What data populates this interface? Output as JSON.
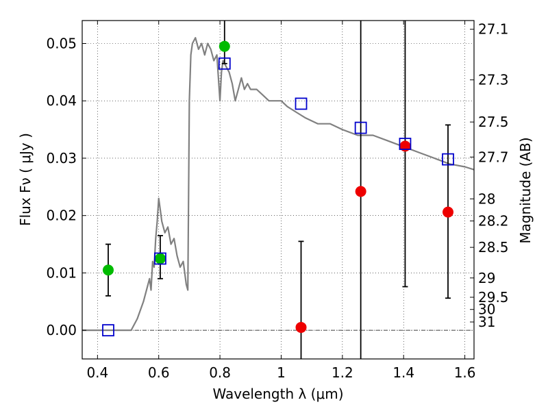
{
  "chart_data": {
    "type": "scatter",
    "xlabel": "Wavelength  λ (μm)",
    "ylabel": "Flux  Fν  ( μJy )",
    "y2label": "Magnitude (AB)",
    "xlim": [
      0.35,
      1.63
    ],
    "ylim": [
      -0.005,
      0.054
    ],
    "grid": true,
    "x_ticks": [
      {
        "value": 0.4,
        "label": "0.4"
      },
      {
        "value": 0.6,
        "label": "0.6"
      },
      {
        "value": 0.8,
        "label": "0.8"
      },
      {
        "value": 1.0,
        "label": "1"
      },
      {
        "value": 1.2,
        "label": "1.2"
      },
      {
        "value": 1.4,
        "label": "1.4"
      },
      {
        "value": 1.6,
        "label": "1.6"
      }
    ],
    "y_ticks": [
      {
        "value": 0.0,
        "label": "0.00"
      },
      {
        "value": 0.01,
        "label": "0.01"
      },
      {
        "value": 0.02,
        "label": "0.02"
      },
      {
        "value": 0.03,
        "label": "0.03"
      },
      {
        "value": 0.04,
        "label": "0.04"
      },
      {
        "value": 0.05,
        "label": "0.05"
      }
    ],
    "mag_ticks": [
      {
        "value": 27.1,
        "label": "27.1"
      },
      {
        "value": 27.3,
        "label": "27.3"
      },
      {
        "value": 27.5,
        "label": "27.5"
      },
      {
        "value": 27.7,
        "label": "27.7"
      },
      {
        "value": 28.0,
        "label": "28"
      },
      {
        "value": 28.2,
        "label": "28.2"
      },
      {
        "value": 28.5,
        "label": "28.5"
      },
      {
        "value": 29.0,
        "label": "29"
      },
      {
        "value": 29.5,
        "label": "29.5"
      },
      {
        "value": 30.0,
        "label": "30"
      },
      {
        "value": 31.0,
        "label": "31"
      }
    ],
    "series": [
      {
        "kind": "line",
        "color": "#808080",
        "x": [
          0.35,
          0.42,
          0.51,
          0.53,
          0.55,
          0.57,
          0.575,
          0.58,
          0.585,
          0.59,
          0.595,
          0.6,
          0.605,
          0.61,
          0.62,
          0.63,
          0.64,
          0.65,
          0.66,
          0.67,
          0.68,
          0.69,
          0.695,
          0.7,
          0.705,
          0.71,
          0.72,
          0.73,
          0.74,
          0.75,
          0.76,
          0.77,
          0.78,
          0.79,
          0.8,
          0.805,
          0.81,
          0.82,
          0.83,
          0.84,
          0.85,
          0.86,
          0.87,
          0.88,
          0.89,
          0.9,
          0.92,
          0.94,
          0.96,
          0.98,
          1.0,
          1.02,
          1.05,
          1.08,
          1.12,
          1.16,
          1.2,
          1.25,
          1.3,
          1.35,
          1.4,
          1.45,
          1.5,
          1.55,
          1.6,
          1.63
        ],
        "y": [
          0.0,
          0.0,
          0.0,
          0.002,
          0.005,
          0.009,
          0.007,
          0.012,
          0.011,
          0.016,
          0.019,
          0.023,
          0.021,
          0.019,
          0.017,
          0.018,
          0.015,
          0.016,
          0.013,
          0.011,
          0.012,
          0.008,
          0.007,
          0.04,
          0.048,
          0.05,
          0.051,
          0.049,
          0.05,
          0.048,
          0.05,
          0.049,
          0.047,
          0.048,
          0.04,
          0.045,
          0.047,
          0.046,
          0.045,
          0.043,
          0.04,
          0.042,
          0.044,
          0.042,
          0.043,
          0.042,
          0.042,
          0.041,
          0.04,
          0.04,
          0.04,
          0.039,
          0.038,
          0.037,
          0.036,
          0.036,
          0.035,
          0.034,
          0.034,
          0.033,
          0.032,
          0.031,
          0.03,
          0.029,
          0.0285,
          0.028
        ]
      },
      {
        "kind": "points",
        "marker": "circle",
        "color": "#00bb00",
        "x": [
          0.435,
          0.605,
          0.815
        ],
        "y": [
          0.0105,
          0.0125,
          0.0495
        ],
        "err_low": [
          0.0045,
          0.0035,
          0.003
        ],
        "err_high": [
          0.0045,
          0.004,
          0.01
        ]
      },
      {
        "kind": "points",
        "marker": "circle",
        "color": "#ee0000",
        "x": [
          1.065,
          1.26,
          1.405,
          1.545
        ],
        "y": [
          0.0005,
          0.0242,
          0.0321,
          0.0206
        ],
        "err_low": [
          0.0055,
          0.03,
          0.0245,
          0.015
        ],
        "err_high": [
          0.015,
          0.03,
          0.03,
          0.0152
        ]
      },
      {
        "kind": "points",
        "marker": "square",
        "color": "#0000cc",
        "x": [
          0.435,
          0.605,
          0.815,
          1.065,
          1.26,
          1.405,
          1.545
        ],
        "y": [
          0.0,
          0.0125,
          0.0465,
          0.0395,
          0.0353,
          0.0325,
          0.0298
        ]
      }
    ]
  }
}
